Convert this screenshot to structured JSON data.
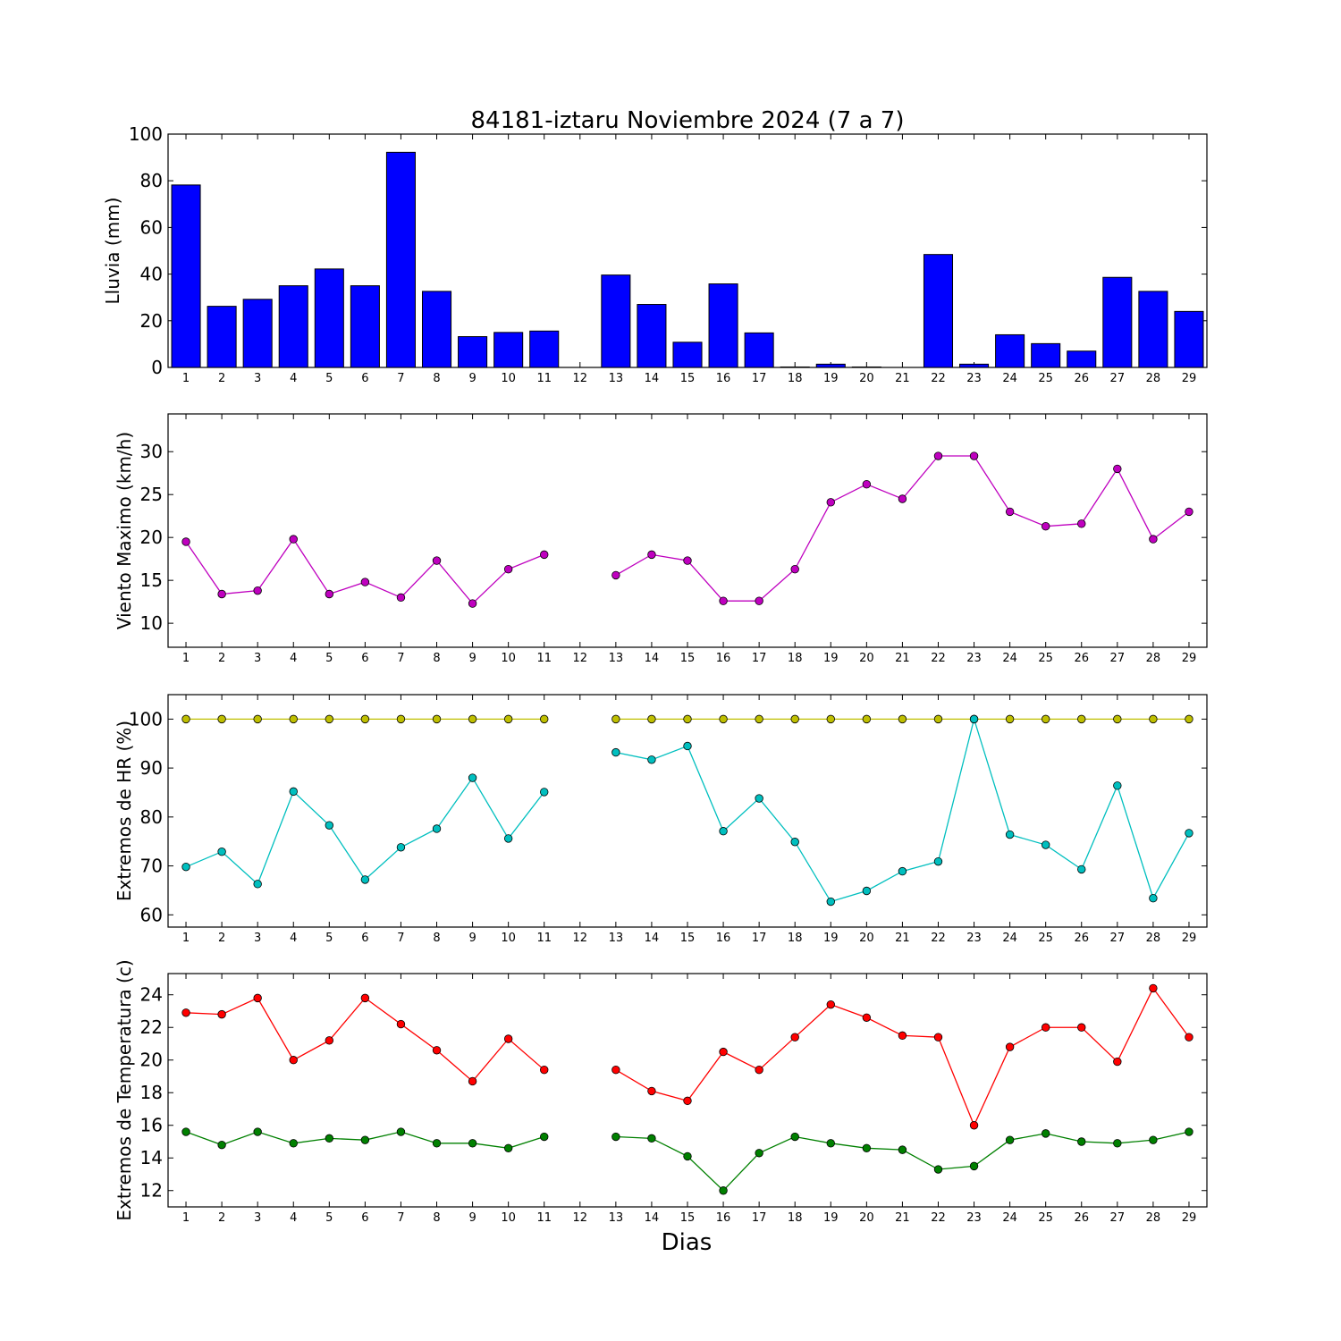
{
  "title": "84181-iztaru Noviembre 2024  (7 a 7)",
  "xlabel": "Dias",
  "chart_data": [
    {
      "type": "bar",
      "ylabel": "Lluvia (mm)",
      "ylim": [
        0,
        100
      ],
      "yticks": [
        0,
        20,
        40,
        60,
        80,
        100
      ],
      "xlim": [
        0.5,
        29.5
      ],
      "x": [
        1,
        2,
        3,
        4,
        5,
        6,
        7,
        8,
        9,
        10,
        11,
        12,
        13,
        14,
        15,
        16,
        17,
        18,
        19,
        20,
        21,
        22,
        23,
        24,
        25,
        26,
        27,
        28,
        29
      ],
      "xtick_labels": [
        "1",
        "2",
        "3",
        "4",
        "5",
        "6",
        "7",
        "8",
        "9",
        "10",
        "11",
        "12",
        "13",
        "14",
        "15",
        "16",
        "17",
        "18",
        "19",
        "20",
        "21",
        "22",
        "23",
        "24",
        "25",
        "26",
        "27",
        "28",
        "29"
      ],
      "series": [
        {
          "color": "#0000ff",
          "values": [
            78.2,
            26.2,
            29.2,
            35.0,
            42.2,
            35.0,
            92.2,
            32.6,
            13.2,
            15.0,
            15.6,
            null,
            39.6,
            27.0,
            10.8,
            35.8,
            14.8,
            0.2,
            1.4,
            0.2,
            0,
            48.4,
            1.4,
            14.0,
            10.2,
            7.0,
            38.6,
            32.6,
            24.0
          ]
        }
      ],
      "grid": false
    },
    {
      "type": "line",
      "ylabel": "Viento Maximo (km/h)",
      "ylim": [
        7.2,
        34.4
      ],
      "yticks": [
        10,
        15,
        20,
        25,
        30
      ],
      "xlim": [
        0.5,
        29.5
      ],
      "x": [
        1,
        2,
        3,
        4,
        5,
        6,
        7,
        8,
        9,
        10,
        11,
        12,
        13,
        14,
        15,
        16,
        17,
        18,
        19,
        20,
        21,
        22,
        23,
        24,
        25,
        26,
        27,
        28,
        29
      ],
      "xtick_labels": [
        "1",
        "2",
        "3",
        "4",
        "5",
        "6",
        "7",
        "8",
        "9",
        "10",
        "11",
        "12",
        "13",
        "14",
        "15",
        "16",
        "17",
        "18",
        "19",
        "20",
        "21",
        "22",
        "23",
        "24",
        "25",
        "26",
        "27",
        "28",
        "29"
      ],
      "series": [
        {
          "color": "#bf00bf",
          "values": [
            19.5,
            13.4,
            13.8,
            19.8,
            13.4,
            14.8,
            13.0,
            17.3,
            12.3,
            16.3,
            18.0,
            null,
            15.6,
            18.0,
            17.3,
            12.6,
            12.6,
            16.3,
            24.1,
            26.2,
            24.5,
            29.5,
            29.5,
            23.0,
            21.3,
            21.6,
            28.0,
            19.8,
            23.0
          ]
        }
      ],
      "grid": false
    },
    {
      "type": "line",
      "ylabel": "Extremos de HR (%)",
      "ylim": [
        57.5,
        105
      ],
      "yticks": [
        60,
        70,
        80,
        90,
        100
      ],
      "xlim": [
        0.5,
        29.5
      ],
      "x": [
        1,
        2,
        3,
        4,
        5,
        6,
        7,
        8,
        9,
        10,
        11,
        12,
        13,
        14,
        15,
        16,
        17,
        18,
        19,
        20,
        21,
        22,
        23,
        24,
        25,
        26,
        27,
        28,
        29
      ],
      "xtick_labels": [
        "1",
        "2",
        "3",
        "4",
        "5",
        "6",
        "7",
        "8",
        "9",
        "10",
        "11",
        "12",
        "13",
        "14",
        "15",
        "16",
        "17",
        "18",
        "19",
        "20",
        "21",
        "22",
        "23",
        "24",
        "25",
        "26",
        "27",
        "28",
        "29"
      ],
      "series": [
        {
          "color": "#bfbf00",
          "values": [
            100,
            100,
            100,
            100,
            100,
            100,
            100,
            100,
            100,
            100,
            100,
            null,
            100,
            100,
            100,
            100,
            100,
            100,
            100,
            100,
            100,
            100,
            100,
            100,
            100,
            100,
            100,
            100,
            100
          ]
        },
        {
          "color": "#00bfbf",
          "values": [
            69.8,
            72.9,
            66.3,
            85.2,
            78.3,
            67.2,
            73.8,
            77.6,
            88.0,
            75.6,
            85.1,
            null,
            93.2,
            91.7,
            94.5,
            77.1,
            83.8,
            74.9,
            62.7,
            64.9,
            68.9,
            70.9,
            100.0,
            76.4,
            74.3,
            69.3,
            86.4,
            63.4,
            76.7
          ]
        }
      ],
      "grid": false
    },
    {
      "type": "line",
      "ylabel": "Extremos de Temperatura (c)",
      "ylim": [
        11.0,
        25.3
      ],
      "yticks": [
        12,
        14,
        16,
        18,
        20,
        22,
        24
      ],
      "xlim": [
        0.5,
        29.5
      ],
      "x": [
        1,
        2,
        3,
        4,
        5,
        6,
        7,
        8,
        9,
        10,
        11,
        12,
        13,
        14,
        15,
        16,
        17,
        18,
        19,
        20,
        21,
        22,
        23,
        24,
        25,
        26,
        27,
        28,
        29
      ],
      "xtick_labels": [
        "1",
        "2",
        "3",
        "4",
        "5",
        "6",
        "7",
        "8",
        "9",
        "10",
        "11",
        "12",
        "13",
        "14",
        "15",
        "16",
        "17",
        "18",
        "19",
        "20",
        "21",
        "22",
        "23",
        "24",
        "25",
        "26",
        "27",
        "28",
        "29"
      ],
      "series": [
        {
          "color": "#ff0000",
          "values": [
            22.9,
            22.8,
            23.8,
            20.0,
            21.2,
            23.8,
            22.2,
            20.6,
            18.7,
            21.3,
            19.4,
            null,
            19.4,
            18.1,
            17.5,
            20.5,
            19.4,
            21.4,
            23.4,
            22.6,
            21.5,
            21.4,
            16.0,
            20.8,
            22.0,
            22.0,
            19.9,
            24.4,
            21.4
          ]
        },
        {
          "color": "#008000",
          "values": [
            15.6,
            14.8,
            15.6,
            14.9,
            15.2,
            15.1,
            15.6,
            14.9,
            14.9,
            14.6,
            15.3,
            null,
            15.3,
            15.2,
            14.1,
            12.0,
            14.3,
            15.3,
            14.9,
            14.6,
            14.5,
            13.3,
            13.5,
            15.1,
            15.5,
            15.0,
            14.9,
            15.1,
            15.6
          ]
        }
      ],
      "grid": false
    }
  ]
}
